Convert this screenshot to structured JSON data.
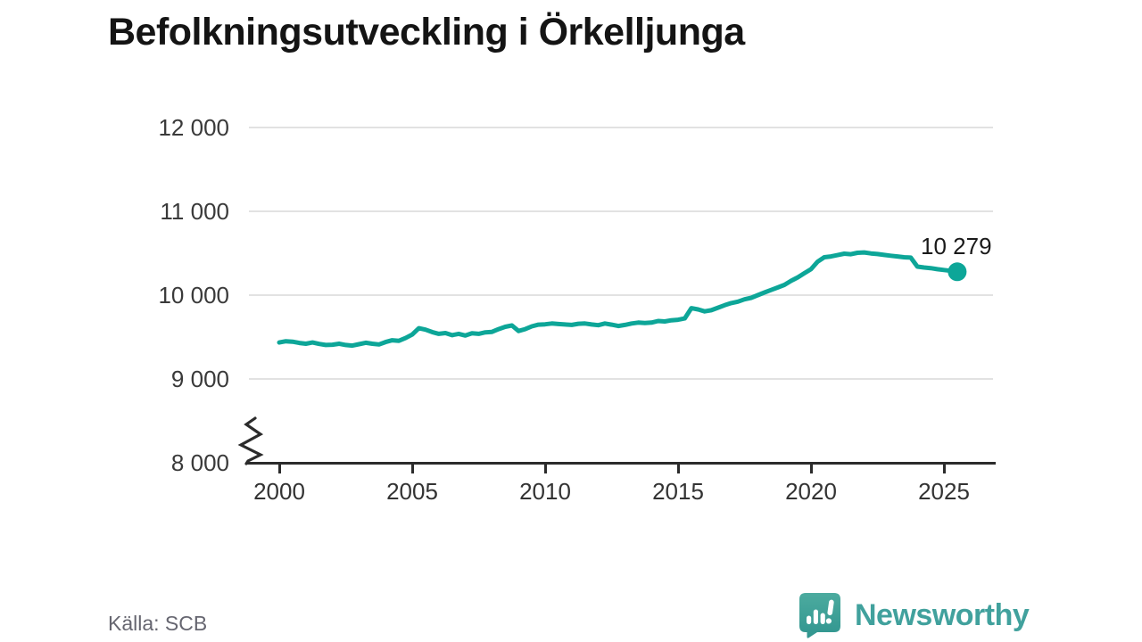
{
  "title": "Befolkningsutveckling i Örkelljunga",
  "source": "Källa: SCB",
  "brand": {
    "name": "Newsworthy",
    "color": "#41a19d"
  },
  "annotation": {
    "last_value_label": "10 279"
  },
  "chart_data": {
    "type": "line",
    "title": "Befolkningsutveckling i Örkelljunga",
    "series_name": "Befolkning",
    "start_year": 2000,
    "step": 0.25,
    "values": [
      9435,
      9450,
      9445,
      9430,
      9420,
      9435,
      9418,
      9405,
      9408,
      9420,
      9405,
      9398,
      9415,
      9432,
      9420,
      9412,
      9440,
      9462,
      9455,
      9488,
      9530,
      9605,
      9588,
      9560,
      9538,
      9548,
      9522,
      9538,
      9518,
      9545,
      9538,
      9556,
      9562,
      9595,
      9622,
      9638,
      9572,
      9595,
      9628,
      9648,
      9652,
      9662,
      9655,
      9650,
      9645,
      9658,
      9662,
      9650,
      9642,
      9662,
      9648,
      9632,
      9645,
      9662,
      9672,
      9668,
      9672,
      9692,
      9686,
      9700,
      9706,
      9722,
      9845,
      9830,
      9806,
      9820,
      9850,
      9880,
      9905,
      9922,
      9950,
      9968,
      10000,
      10032,
      10062,
      10092,
      10122,
      10170,
      10212,
      10262,
      10310,
      10400,
      10452,
      10462,
      10478,
      10495,
      10488,
      10505,
      10510,
      10498,
      10490,
      10480,
      10470,
      10462,
      10452,
      10448,
      10340,
      10330,
      10322,
      10310,
      10300,
      10290,
      10279
    ],
    "last_point": {
      "year": 2025.5,
      "value": 10279,
      "label": "10 279"
    },
    "ytick_labels": [
      "12 000",
      "11 000",
      "10 000",
      "9 000",
      "8 000"
    ],
    "ytick_values": [
      12000,
      11000,
      10000,
      9000,
      8000
    ],
    "xtick_labels": [
      "2000",
      "2005",
      "2010",
      "2015",
      "2020",
      "2025"
    ],
    "xtick_values": [
      2000,
      2005,
      2010,
      2015,
      2020,
      2025
    ],
    "ylim": [
      8000,
      12250
    ],
    "xlim": [
      1998.7,
      2027
    ],
    "axis_break": true,
    "grid": true,
    "legend": "none",
    "line_color": "#0da698",
    "xlabel": "",
    "ylabel": ""
  }
}
